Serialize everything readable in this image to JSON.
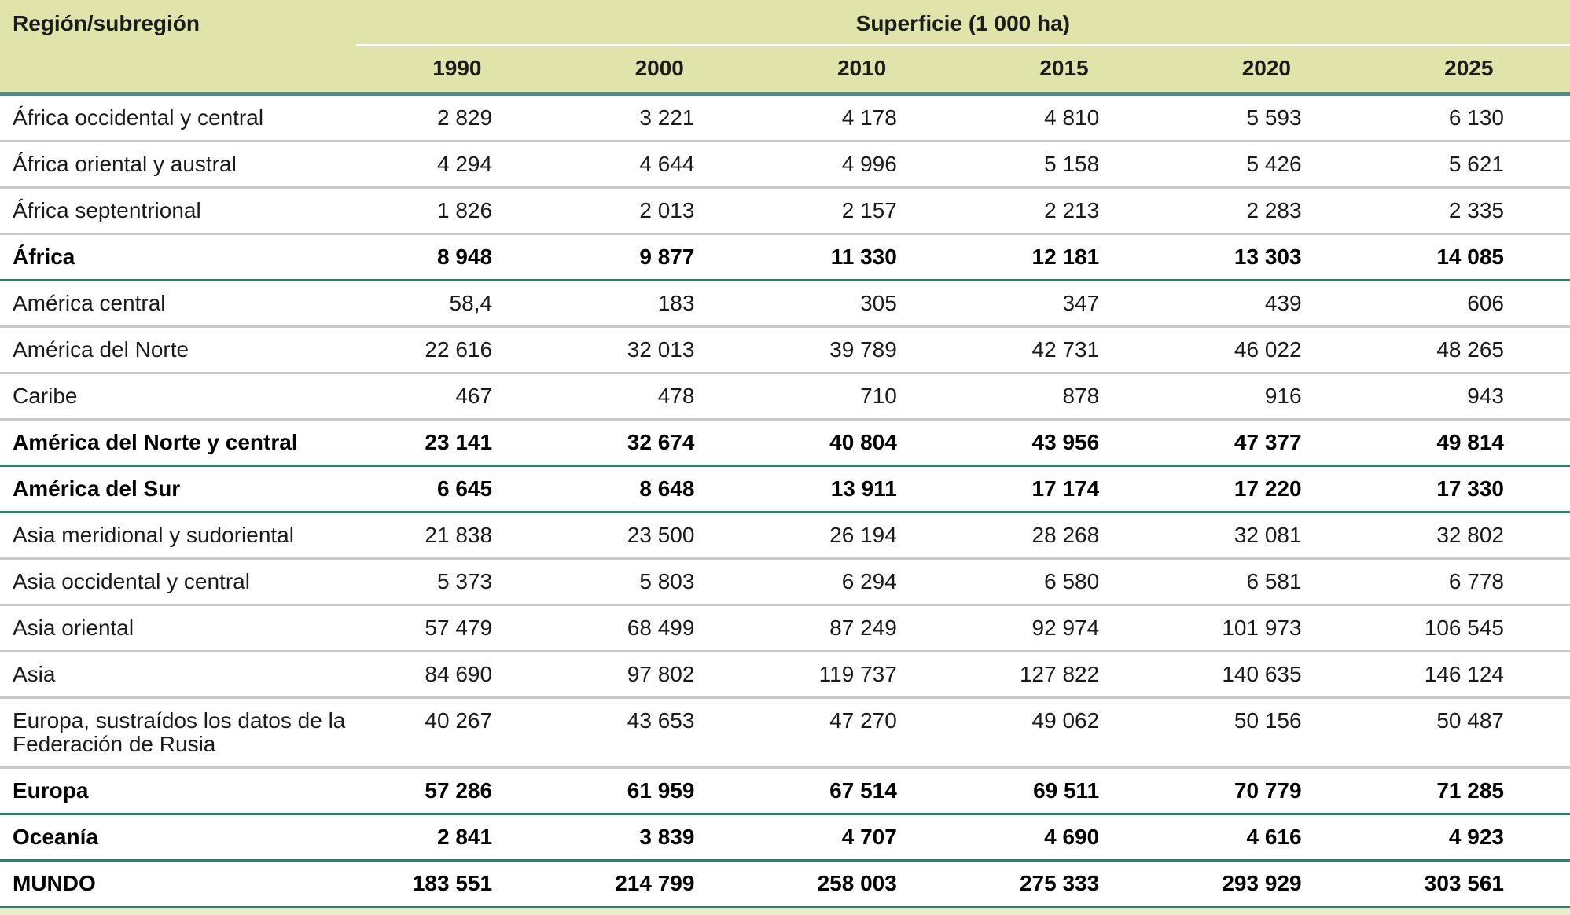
{
  "table": {
    "region_header": "Región/subregión",
    "group_header": "Superficie (1 000 ha)",
    "years": [
      "1990",
      "2000",
      "2010",
      "2015",
      "2020",
      "2025"
    ],
    "rows": [
      {
        "label": "África occidental y central",
        "bold": false,
        "values": [
          "2 829",
          "3 221",
          "4 178",
          "4 810",
          "5 593",
          "6 130"
        ]
      },
      {
        "label": "África oriental y austral",
        "bold": false,
        "values": [
          "4 294",
          "4 644",
          "4 996",
          "5 158",
          "5 426",
          "5 621"
        ]
      },
      {
        "label": "África septentrional",
        "bold": false,
        "values": [
          "1 826",
          "2 013",
          "2 157",
          "2 213",
          "2 283",
          "2 335"
        ]
      },
      {
        "label": "África",
        "bold": true,
        "values": [
          "8 948",
          "9 877",
          "11 330",
          "12 181",
          "13 303",
          "14 085"
        ]
      },
      {
        "label": "América central",
        "bold": false,
        "values": [
          "58,4",
          "183",
          "305",
          "347",
          "439",
          "606"
        ]
      },
      {
        "label": "América del Norte",
        "bold": false,
        "values": [
          "22 616",
          "32 013",
          "39 789",
          "42 731",
          "46 022",
          "48 265"
        ]
      },
      {
        "label": "Caribe",
        "bold": false,
        "values": [
          "467",
          "478",
          "710",
          "878",
          "916",
          "943"
        ]
      },
      {
        "label": "América del Norte y central",
        "bold": true,
        "values": [
          "23 141",
          "32 674",
          "40 804",
          "43 956",
          "47 377",
          "49 814"
        ]
      },
      {
        "label": "América del Sur",
        "bold": true,
        "values": [
          "6 645",
          "8 648",
          "13 911",
          "17 174",
          "17 220",
          "17 330"
        ]
      },
      {
        "label": "Asia meridional y sudoriental",
        "bold": false,
        "values": [
          "21 838",
          "23 500",
          "26 194",
          "28 268",
          "32 081",
          "32 802"
        ]
      },
      {
        "label": "Asia occidental y central",
        "bold": false,
        "values": [
          "5 373",
          "5 803",
          "6 294",
          "6 580",
          "6 581",
          "6 778"
        ]
      },
      {
        "label": "Asia oriental",
        "bold": false,
        "values": [
          "57 479",
          "68 499",
          "87 249",
          "92 974",
          "101 973",
          "106 545"
        ]
      },
      {
        "label": "Asia",
        "bold": false,
        "values": [
          "84 690",
          "97 802",
          "119 737",
          "127 822",
          "140 635",
          "146 124"
        ]
      },
      {
        "label": "Europa, sustraídos los datos de la Federación de Rusia",
        "bold": false,
        "values": [
          "40 267",
          "43 653",
          "47 270",
          "49 062",
          "50 156",
          "50 487"
        ]
      },
      {
        "label": "Europa",
        "bold": true,
        "values": [
          "57 286",
          "61 959",
          "67 514",
          "69 511",
          "70 779",
          "71 285"
        ]
      },
      {
        "label": "Oceanía",
        "bold": true,
        "values": [
          "2 841",
          "3 839",
          "4 707",
          "4 690",
          "4 616",
          "4 923"
        ]
      },
      {
        "label": "MUNDO",
        "bold": true,
        "values": [
          "183 551",
          "214 799",
          "258 003",
          "275 333",
          "293 929",
          "303 561"
        ]
      }
    ]
  },
  "colors": {
    "header_bg": "#e0e3aa",
    "header_rule": "#4e8c84",
    "total_rule": "#2f7e6e",
    "row_rule": "#c9c9c9",
    "footer_strip": "#e9eccd",
    "text": "#1a1a1a"
  },
  "chart_data": {
    "type": "table",
    "title": "Superficie (1 000 ha)",
    "columns": [
      "Región/subregión",
      "1990",
      "2000",
      "2010",
      "2015",
      "2020",
      "2025"
    ],
    "rows": [
      {
        "region": "África occidental y central",
        "total_row": false,
        "values": [
          2829,
          3221,
          4178,
          4810,
          5593,
          6130
        ]
      },
      {
        "region": "África oriental y austral",
        "total_row": false,
        "values": [
          4294,
          4644,
          4996,
          5158,
          5426,
          5621
        ]
      },
      {
        "region": "África septentrional",
        "total_row": false,
        "values": [
          1826,
          2013,
          2157,
          2213,
          2283,
          2335
        ]
      },
      {
        "region": "África",
        "total_row": true,
        "values": [
          8948,
          9877,
          11330,
          12181,
          13303,
          14085
        ]
      },
      {
        "region": "América central",
        "total_row": false,
        "values": [
          58.4,
          183,
          305,
          347,
          439,
          606
        ]
      },
      {
        "region": "América del Norte",
        "total_row": false,
        "values": [
          22616,
          32013,
          39789,
          42731,
          46022,
          48265
        ]
      },
      {
        "region": "Caribe",
        "total_row": false,
        "values": [
          467,
          478,
          710,
          878,
          916,
          943
        ]
      },
      {
        "region": "América del Norte y central",
        "total_row": true,
        "values": [
          23141,
          32674,
          40804,
          43956,
          47377,
          49814
        ]
      },
      {
        "region": "América del Sur",
        "total_row": true,
        "values": [
          6645,
          8648,
          13911,
          17174,
          17220,
          17330
        ]
      },
      {
        "region": "Asia meridional y sudoriental",
        "total_row": false,
        "values": [
          21838,
          23500,
          26194,
          28268,
          32081,
          32802
        ]
      },
      {
        "region": "Asia occidental y central",
        "total_row": false,
        "values": [
          5373,
          5803,
          6294,
          6580,
          6581,
          6778
        ]
      },
      {
        "region": "Asia oriental",
        "total_row": false,
        "values": [
          57479,
          68499,
          87249,
          92974,
          101973,
          106545
        ]
      },
      {
        "region": "Asia",
        "total_row": false,
        "values": [
          84690,
          97802,
          119737,
          127822,
          140635,
          146124
        ]
      },
      {
        "region": "Europa, sustraídos los datos de la Federación de Rusia",
        "total_row": false,
        "values": [
          40267,
          43653,
          47270,
          49062,
          50156,
          50487
        ]
      },
      {
        "region": "Europa",
        "total_row": true,
        "values": [
          57286,
          61959,
          67514,
          69511,
          70779,
          71285
        ]
      },
      {
        "region": "Oceanía",
        "total_row": true,
        "values": [
          2841,
          3839,
          4707,
          4690,
          4616,
          4923
        ]
      },
      {
        "region": "MUNDO",
        "total_row": true,
        "values": [
          183551,
          214799,
          258003,
          275333,
          293929,
          303561
        ]
      }
    ],
    "units": "1 000 ha",
    "layout": "region label column left; six year columns right-aligned; total rows bold with teal rules"
  }
}
